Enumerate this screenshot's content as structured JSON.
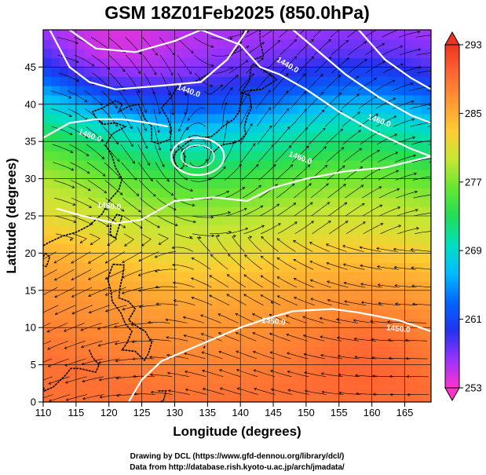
{
  "chart_data": {
    "type": "heatmap",
    "title": "GSM 18Z01Feb2025 (850.0hPa)",
    "xlabel": "Longitude (degrees)",
    "ylabel": "Latitude  (degrees)",
    "xlim": [
      110,
      169
    ],
    "ylim": [
      0,
      50
    ],
    "x_ticks": [
      110,
      115,
      120,
      125,
      130,
      135,
      140,
      145,
      150,
      155,
      160,
      165
    ],
    "y_ticks": [
      0,
      5,
      10,
      15,
      20,
      25,
      30,
      35,
      40,
      45
    ],
    "grid": true,
    "fill_variable": "temperature (K)",
    "colorbar": {
      "ticks": [
        253,
        261,
        269,
        277,
        285,
        293
      ],
      "range": [
        253,
        293
      ],
      "colors": [
        "#ff33cc",
        "#9933ff",
        "#2233ee",
        "#0066ff",
        "#00bbff",
        "#00e0c0",
        "#22dd55",
        "#66e633",
        "#c8e633",
        "#ffcc33",
        "#ff9933",
        "#ff6633",
        "#ee3322"
      ]
    },
    "contours": {
      "variable": "geopotential height (m)",
      "labels": [
        "1440.0",
        "1440.0",
        "1460.0",
        "1460.0",
        "1460.0",
        "1450.0",
        "1450.0",
        "1460.0"
      ]
    },
    "temperature_field_lat_profile": {
      "lat": [
        50,
        46,
        42,
        38,
        34,
        30,
        26,
        22,
        18,
        14,
        10,
        6,
        2
      ],
      "temp_k": [
        256,
        258,
        262,
        268,
        272,
        276,
        279,
        281,
        284,
        286,
        287,
        288,
        289
      ]
    }
  },
  "credits": {
    "line1": "Drawing by DCL (https://www.gfd-dennou.org/library/dcl/)",
    "line2": "Data from http://database.rish.kyoto-u.ac.jp/arch/jmadata/"
  }
}
